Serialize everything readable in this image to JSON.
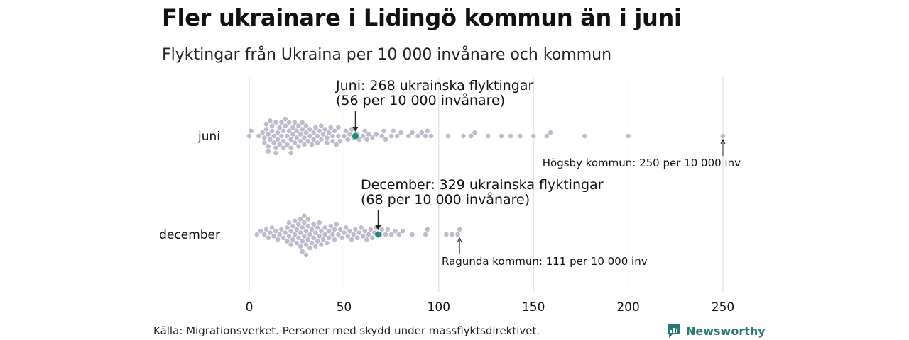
{
  "title": "Fler ukrainare i Lidingö kommun än i juni",
  "subtitle": "Flyktingar från Ukraina per 10 000 invånare och kommun",
  "source": "Källa: Migrationsverket. Personer med skydd under massflyktsdirektivet.",
  "brand": "Newsworthy",
  "colors": {
    "dot": "#bdbbcc",
    "highlight": "#1f8a80",
    "grid": "#d6d6d6",
    "text": "#111111"
  },
  "chart_data": {
    "type": "scatter",
    "subtype": "beeswarm",
    "x_ticks": [
      0,
      50,
      100,
      150,
      200,
      250
    ],
    "xlim": [
      0,
      250
    ],
    "rows": [
      {
        "label": "juni",
        "highlight": {
          "value": 56,
          "label_line1": "Juni: 268 ukrainska flyktingar",
          "label_line2": "(56 per 10 000 invånare)"
        },
        "extreme": {
          "value": 250,
          "label": "Högsby kommun: 250 per 10 000 inv"
        },
        "values": [
          0,
          1,
          5,
          7,
          8,
          8,
          9,
          9,
          10,
          10,
          10,
          11,
          11,
          12,
          12,
          13,
          13,
          14,
          14,
          14,
          15,
          15,
          16,
          16,
          17,
          17,
          18,
          18,
          18,
          19,
          19,
          20,
          20,
          21,
          21,
          22,
          22,
          22,
          23,
          23,
          24,
          24,
          25,
          25,
          26,
          26,
          27,
          27,
          28,
          28,
          29,
          29,
          30,
          30,
          31,
          32,
          32,
          33,
          34,
          34,
          35,
          36,
          36,
          37,
          38,
          38,
          39,
          40,
          41,
          41,
          42,
          43,
          44,
          44,
          45,
          46,
          47,
          47,
          48,
          50,
          51,
          52,
          53,
          54,
          55,
          57,
          58,
          60,
          61,
          62,
          63,
          65,
          67,
          70,
          71,
          72,
          75,
          76,
          78,
          80,
          84,
          86,
          89,
          91,
          93,
          94,
          96,
          105,
          113,
          117,
          119,
          126,
          133,
          138,
          143,
          150,
          157,
          159,
          177,
          200,
          250
        ]
      },
      {
        "label": "december",
        "highlight": {
          "value": 68,
          "label_line1": "December: 329 ukrainska flyktingar",
          "label_line2": "(68 per 10 000 invånare)"
        },
        "extreme": {
          "value": 111,
          "label": "Ragunda kommun: 111 per 10 000 inv"
        },
        "values": [
          4,
          6,
          8,
          9,
          10,
          11,
          12,
          13,
          14,
          15,
          16,
          17,
          18,
          19,
          20,
          20,
          21,
          21,
          22,
          22,
          23,
          23,
          24,
          24,
          25,
          25,
          26,
          26,
          27,
          27,
          27,
          28,
          28,
          28,
          29,
          29,
          29,
          30,
          30,
          30,
          31,
          31,
          31,
          32,
          32,
          33,
          33,
          34,
          34,
          35,
          35,
          36,
          36,
          37,
          37,
          38,
          38,
          39,
          40,
          40,
          41,
          42,
          42,
          43,
          44,
          45,
          45,
          46,
          47,
          48,
          49,
          50,
          51,
          52,
          53,
          54,
          55,
          56,
          57,
          58,
          59,
          60,
          61,
          62,
          63,
          64,
          65,
          66,
          67,
          69,
          70,
          72,
          73,
          75,
          77,
          79,
          81,
          86,
          93,
          94,
          104,
          107,
          110,
          111
        ]
      }
    ]
  }
}
